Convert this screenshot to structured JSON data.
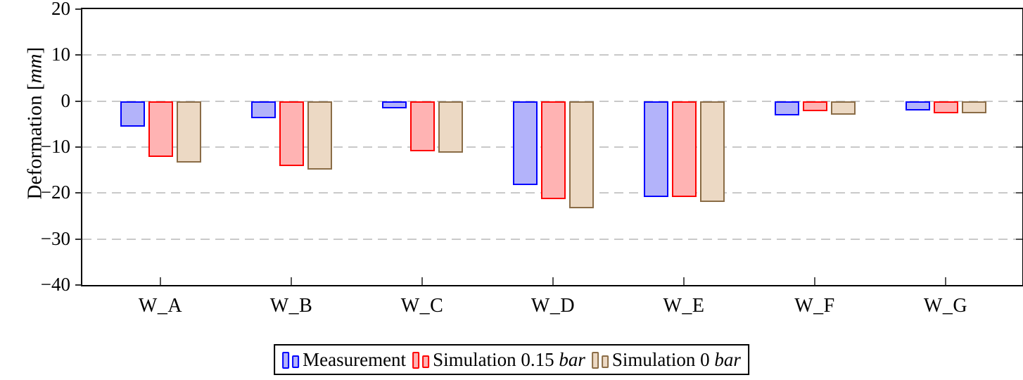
{
  "chart_data": {
    "type": "bar",
    "title": "",
    "ylabel": "Deformation [mm]",
    "ylabel_parts": [
      {
        "text": "Deformation [",
        "italic": false
      },
      {
        "text": "mm",
        "italic": true
      },
      {
        "text": "]",
        "italic": false
      }
    ],
    "categories": [
      "W_A",
      "W_B",
      "W_C",
      "W_D",
      "W_E",
      "W_F",
      "W_G"
    ],
    "ylim": [
      -40,
      20
    ],
    "yticks": [
      {
        "value": 20,
        "label": "20"
      },
      {
        "value": 10,
        "label": "10"
      },
      {
        "value": 0,
        "label": "0"
      },
      {
        "value": -10,
        "label": "−10"
      },
      {
        "value": -20,
        "label": "−20"
      },
      {
        "value": -30,
        "label": "−30"
      },
      {
        "value": -40,
        "label": "−40"
      }
    ],
    "grid_values": [
      10,
      0,
      -10,
      -20,
      -30
    ],
    "grid_style": "dashed",
    "legend_position": "below plot, centered, boxed",
    "series": [
      {
        "name": "Measurement",
        "label_parts": [
          {
            "text": "Measurement",
            "italic": false
          }
        ],
        "fill": "#b3b3fa",
        "stroke": "#0000ff",
        "values": [
          -5.5,
          -3.7,
          -1.6,
          -18.2,
          -20.8,
          -3.1,
          -2.1
        ]
      },
      {
        "name": "Simulation 0.15 bar",
        "label_parts": [
          {
            "text": "Simulation 0.15 ",
            "italic": false
          },
          {
            "text": "bar",
            "italic": true
          }
        ],
        "fill": "#ffb3b3",
        "stroke": "#ff0000",
        "values": [
          -12.1,
          -14.1,
          -10.9,
          -21.3,
          -20.8,
          -2.2,
          -2.7
        ]
      },
      {
        "name": "Simulation 0 bar",
        "label_parts": [
          {
            "text": "Simulation 0 ",
            "italic": false
          },
          {
            "text": "bar",
            "italic": true
          }
        ],
        "fill": "#ecd9c4",
        "stroke": "#8a6c46",
        "values": [
          -13.3,
          -14.9,
          -11.2,
          -23.3,
          -21.9,
          -2.9,
          -2.7
        ]
      }
    ],
    "colors": {
      "grid": "#c9c9c9",
      "axis_frame": "#000000",
      "tick": "#444444",
      "background": "#ffffff"
    }
  }
}
